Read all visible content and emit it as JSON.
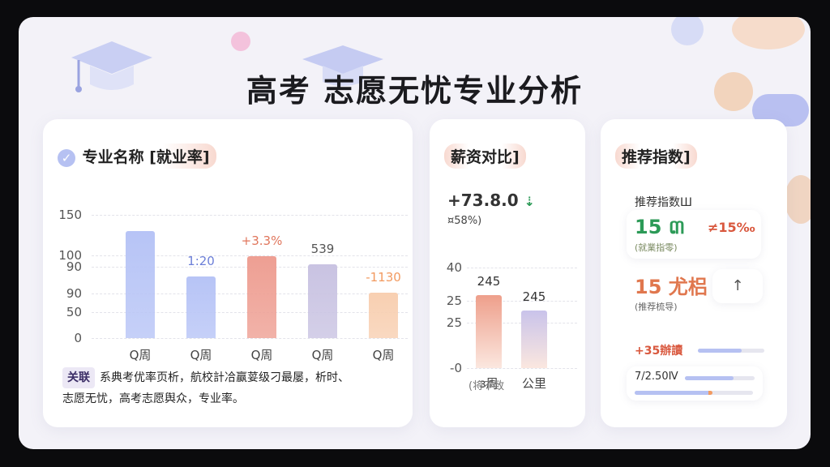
{
  "page": {
    "title": "高考 志愿无忧专业分析"
  },
  "major_card": {
    "title": "专业名称 [就业率]",
    "y_ticks": [
      "150",
      "100",
      "90",
      "90",
      "50",
      "0"
    ],
    "categories": [
      "Q周",
      "Q周",
      "Q周",
      "Q周",
      "Q周"
    ],
    "value_labels": [
      "",
      "1:20",
      "+3.3%",
      "539",
      "-1130"
    ],
    "note_tag": "关联",
    "note_line1": "系典考优率页析，航校計冾赢荽级刁最屡，析时、",
    "note_line2": "志愿无忧，高考志愿舆众，专业率。"
  },
  "salary_card": {
    "title": "薪资对比]",
    "headline_num": "+73.8.0",
    "headline_icon": "down-arrow-icon",
    "subline": "¤58%)",
    "y_ticks": [
      "40",
      "25",
      "25",
      "-0"
    ],
    "categories": [
      "ɜ周",
      "公里"
    ],
    "value_labels": [
      "245",
      "245"
    ],
    "footnote": "(将不致"
  },
  "recommend_card": {
    "title": "推荐指数]",
    "subheader": "推荐指数Ш",
    "box1_value": "15 ៣",
    "box1_change": "≠15‰",
    "box1_caption": "(就業指零)",
    "box2_value": "15 尤梠",
    "box2_caption": "(推荐梳导)",
    "box2_button": "↑",
    "row1_label": "+35辦讀",
    "row2_label": "7/2.50Ⅳ"
  },
  "chart_data": [
    {
      "type": "bar",
      "title": "专业名称 [就业率]",
      "categories": [
        "Q周",
        "Q周",
        "Q周",
        "Q周",
        "Q周"
      ],
      "values": [
        130,
        75,
        100,
        90,
        55
      ],
      "y_tick_labels": [
        "150",
        "100",
        "90",
        "90",
        "50",
        "0"
      ],
      "colors": [
        "#b7c4f6",
        "#b7c4f6",
        "#ee9f93",
        "#c9c3e2",
        "#f8cfb1"
      ]
    },
    {
      "type": "bar",
      "title": "薪资对比]",
      "categories": [
        "ɜ周",
        "公里"
      ],
      "values": [
        29,
        23
      ],
      "y_tick_labels": [
        "40",
        "25",
        "25",
        "-0"
      ],
      "colors": [
        "#ee9f8b",
        "#c9c3ea"
      ]
    }
  ],
  "progress": {
    "row1": 0.66,
    "row2": 0.7,
    "row3": 0.66
  },
  "colors": {
    "accent_blue": "#7d8fe8",
    "accent_red": "#d9583e",
    "accent_green": "#2c9a57",
    "accent_orange": "#f29a60"
  }
}
